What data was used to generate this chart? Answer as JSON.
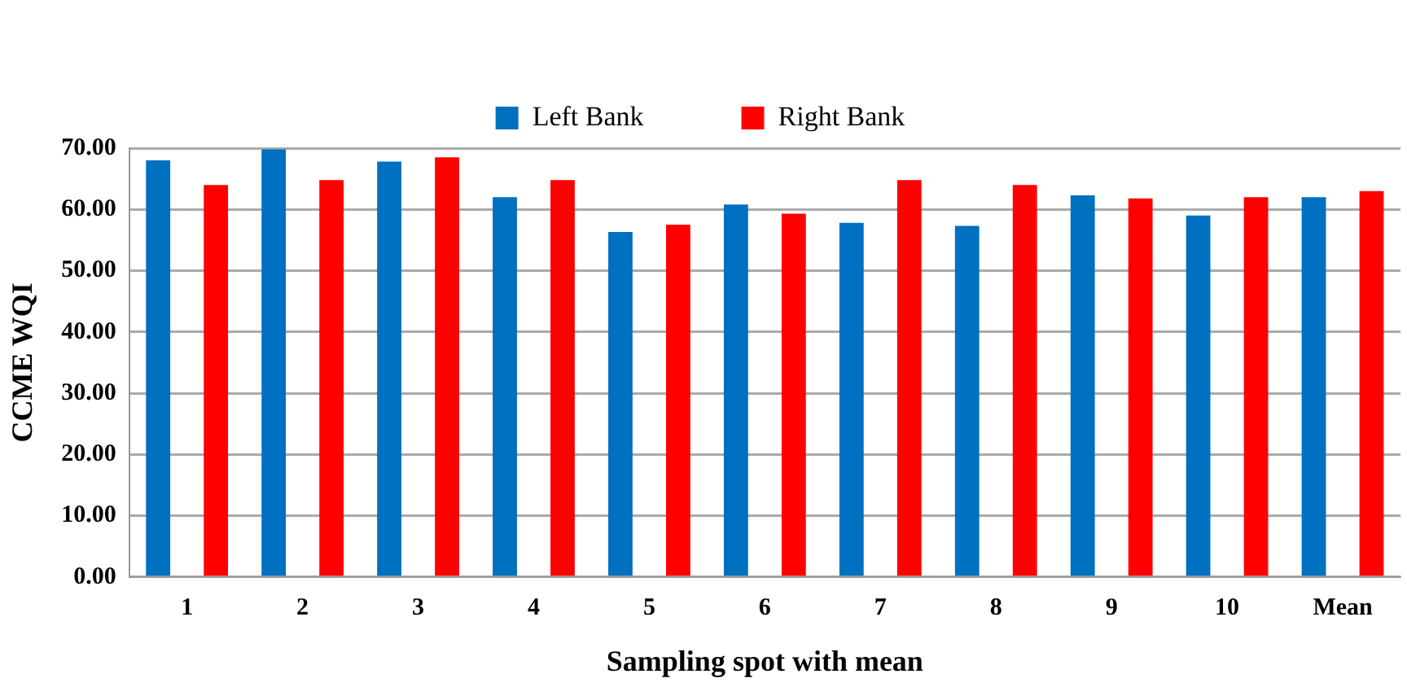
{
  "chart_data": {
    "type": "bar",
    "xlabel": "Sampling spot with mean",
    "ylabel": "CCME WQI",
    "categories": [
      "1",
      "2",
      "3",
      "4",
      "5",
      "6",
      "7",
      "8",
      "9",
      "10",
      "Mean"
    ],
    "series": [
      {
        "name": "Left Bank",
        "color": "#0070c0",
        "values": [
          68.0,
          69.8,
          67.8,
          62.0,
          56.3,
          60.8,
          57.8,
          57.3,
          62.3,
          59.0,
          62.0
        ]
      },
      {
        "name": "Right Bank",
        "color": "#ff0000",
        "values": [
          64.0,
          64.8,
          68.5,
          64.8,
          57.5,
          59.3,
          64.8,
          64.0,
          61.8,
          62.0,
          63.0
        ]
      }
    ],
    "ylim": [
      0,
      70
    ],
    "yticks": [
      {
        "value": 0,
        "label": "0.00"
      },
      {
        "value": 10,
        "label": "10.00"
      },
      {
        "value": 20,
        "label": "20.00"
      },
      {
        "value": 30,
        "label": "30.00"
      },
      {
        "value": 40,
        "label": "40.00"
      },
      {
        "value": 50,
        "label": "50.00"
      },
      {
        "value": 60,
        "label": "60.00"
      },
      {
        "value": 70,
        "label": "70.00"
      }
    ],
    "grid": "y",
    "legend": "top"
  }
}
